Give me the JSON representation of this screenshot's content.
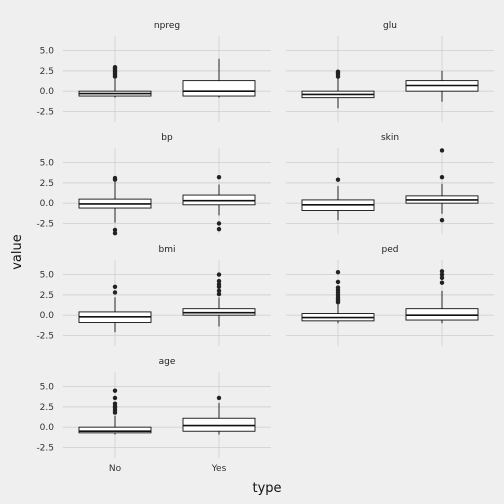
{
  "chart_data": {
    "type": "boxplot",
    "xlabel": "type",
    "ylabel": "value",
    "categories": [
      "No",
      "Yes"
    ],
    "ylim": [
      -3.8,
      6.8
    ],
    "yticks": [
      -2.5,
      0.0,
      2.5,
      5.0
    ],
    "ytick_labels": [
      "-2.5",
      "0.0",
      "2.5",
      "5.0"
    ],
    "grid": true,
    "facets": [
      {
        "name": "npreg",
        "groups": [
          {
            "category": "No",
            "low": -0.8,
            "q1": -0.6,
            "median": -0.3,
            "q3": 0.0,
            "high": 1.5,
            "outliers": [
              1.8,
              2.0,
              2.2,
              2.4,
              2.6,
              2.8,
              2.95
            ]
          },
          {
            "category": "Yes",
            "low": -0.8,
            "q1": -0.6,
            "median": 0.0,
            "q3": 1.3,
            "high": 4.0,
            "outliers": []
          }
        ]
      },
      {
        "name": "glu",
        "groups": [
          {
            "category": "No",
            "low": -2.1,
            "q1": -0.8,
            "median": -0.4,
            "q3": 0.0,
            "high": 1.6,
            "outliers": [
              1.8,
              2.1,
              2.3,
              2.4
            ]
          },
          {
            "category": "Yes",
            "low": -1.3,
            "q1": 0.0,
            "median": 0.7,
            "q3": 1.3,
            "high": 2.5,
            "outliers": []
          }
        ]
      },
      {
        "name": "bp",
        "groups": [
          {
            "category": "No",
            "low": -2.4,
            "q1": -0.6,
            "median": -0.1,
            "q3": 0.5,
            "high": 2.6,
            "outliers": [
              -3.3,
              -3.7,
              2.9,
              3.1
            ]
          },
          {
            "category": "Yes",
            "low": -1.5,
            "q1": -0.2,
            "median": 0.3,
            "q3": 1.0,
            "high": 2.3,
            "outliers": [
              -2.5,
              -3.2,
              3.2
            ]
          }
        ]
      },
      {
        "name": "skin",
        "groups": [
          {
            "category": "No",
            "low": -2.1,
            "q1": -0.9,
            "median": -0.2,
            "q3": 0.4,
            "high": 2.1,
            "outliers": [
              2.9
            ]
          },
          {
            "category": "Yes",
            "low": -1.3,
            "q1": 0.0,
            "median": 0.4,
            "q3": 0.9,
            "high": 2.4,
            "outliers": [
              -2.1,
              3.2,
              6.5
            ]
          }
        ]
      },
      {
        "name": "bmi",
        "groups": [
          {
            "category": "No",
            "low": -2.1,
            "q1": -0.9,
            "median": -0.2,
            "q3": 0.4,
            "high": 2.2,
            "outliers": [
              2.8,
              3.5
            ]
          },
          {
            "category": "Yes",
            "low": -1.4,
            "q1": 0.0,
            "median": 0.3,
            "q3": 0.8,
            "high": 2.2,
            "outliers": [
              2.6,
              3.0,
              3.5,
              3.8,
              4.2,
              5.0
            ]
          }
        ]
      },
      {
        "name": "ped",
        "groups": [
          {
            "category": "No",
            "low": -1.0,
            "q1": -0.7,
            "median": -0.3,
            "q3": 0.2,
            "high": 1.4,
            "outliers": [
              1.6,
              1.8,
              2.0,
              2.2,
              2.5,
              2.8,
              3.1,
              3.4,
              4.1,
              5.3
            ]
          },
          {
            "category": "Yes",
            "low": -1.0,
            "q1": -0.6,
            "median": 0.0,
            "q3": 0.8,
            "high": 3.0,
            "outliers": [
              4.0,
              4.6,
              5.0,
              5.4
            ]
          }
        ]
      },
      {
        "name": "age",
        "groups": [
          {
            "category": "No",
            "low": -0.9,
            "q1": -0.7,
            "median": -0.5,
            "q3": 0.0,
            "high": 1.4,
            "outliers": [
              1.8,
              2.1,
              2.4,
              2.6,
              2.9,
              3.6,
              4.5
            ]
          },
          {
            "category": "Yes",
            "low": -0.9,
            "q1": -0.5,
            "median": 0.2,
            "q3": 1.1,
            "high": 3.0,
            "outliers": [
              3.6
            ]
          }
        ]
      }
    ]
  }
}
